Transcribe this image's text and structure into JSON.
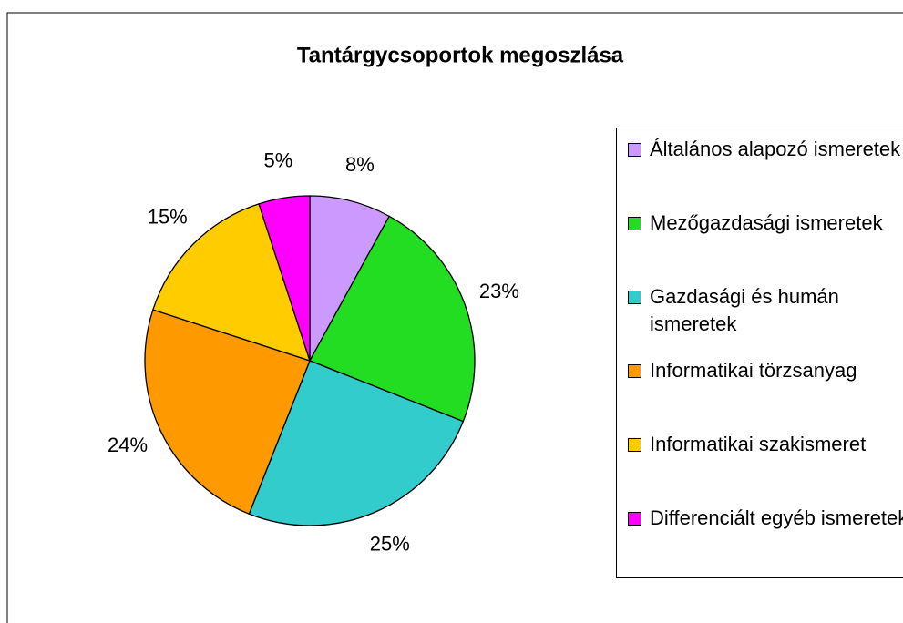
{
  "chart_data": {
    "type": "pie",
    "title": "Tantárgycsoportok megoszlása",
    "categories": [
      "Általános alapozó ismeretek",
      "Mezőgazdasági ismeretek",
      "Gazdasági és humán ismeretek",
      "Informatikai törzsanyag",
      "Informatikai szakismeret",
      "Differenciált egyéb ismeretek"
    ],
    "values": [
      8,
      23,
      25,
      24,
      15,
      5
    ],
    "value_labels": [
      "8%",
      "23%",
      "25%",
      "24%",
      "15%",
      "5%"
    ],
    "colors": [
      "#cc99ff",
      "#22dd22",
      "#33cccc",
      "#ff9900",
      "#ffcc00",
      "#ff00ff"
    ]
  }
}
